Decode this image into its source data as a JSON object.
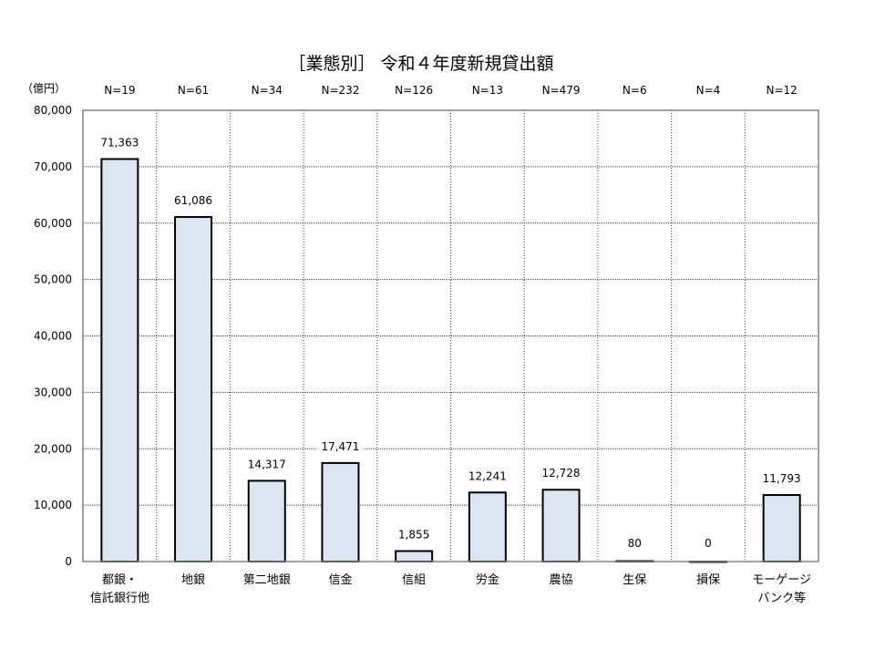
{
  "chart_data": {
    "type": "bar",
    "title": "［業態別］ 令和４年度新規貸出額",
    "ylabel": "（億円）",
    "xlabel": "",
    "ylim": [
      0,
      80000
    ],
    "yticks": [
      0,
      10000,
      20000,
      30000,
      40000,
      50000,
      60000,
      70000,
      80000
    ],
    "ytick_labels": [
      "0",
      "10,000",
      "20,000",
      "30,000",
      "40,000",
      "50,000",
      "60,000",
      "70,000",
      "80,000"
    ],
    "grid": true,
    "legend": "none",
    "categories": [
      [
        "都銀・",
        "信託銀行他"
      ],
      [
        "地銀"
      ],
      [
        "第二地銀"
      ],
      [
        "信金"
      ],
      [
        "信組"
      ],
      [
        "労金"
      ],
      [
        "農協"
      ],
      [
        "生保"
      ],
      [
        "損保"
      ],
      [
        "モーゲージ",
        "バンク等"
      ]
    ],
    "n_labels": [
      "N=19",
      "N=61",
      "N=34",
      "N=232",
      "N=126",
      "N=13",
      "N=479",
      "N=6",
      "N=4",
      "N=12"
    ],
    "values": [
      71363,
      61086,
      14317,
      17471,
      1855,
      12241,
      12728,
      80,
      0,
      11793
    ],
    "value_labels": [
      "71,363",
      "61,086",
      "14,317",
      "17,471",
      "1,855",
      "12,241",
      "12,728",
      "80",
      "0",
      "11,793"
    ],
    "colors": {
      "bar_fill": "#dce6f2",
      "bar_stroke": "#000000",
      "axis": "#808080",
      "grid": "#404040"
    }
  }
}
